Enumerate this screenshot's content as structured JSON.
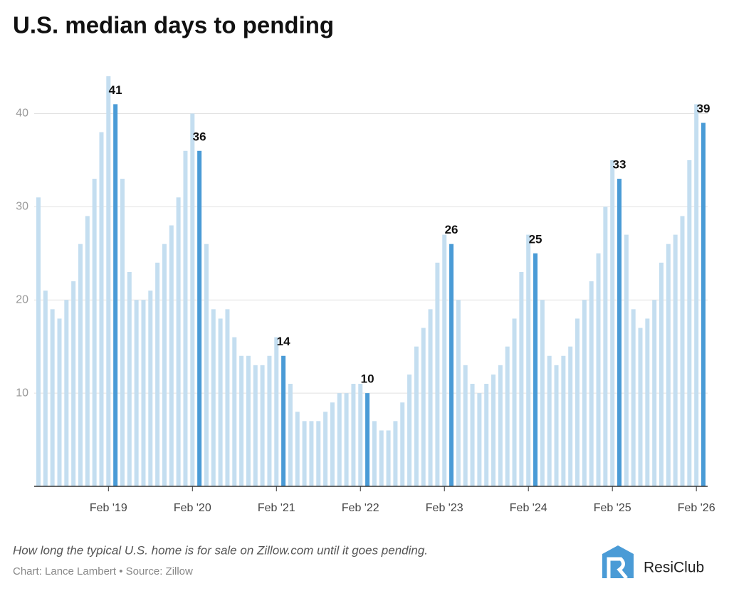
{
  "chart_data": {
    "type": "bar",
    "title": "U.S. median days to pending",
    "caption": "How long the typical U.S. home is for sale on Zillow.com until it goes pending.",
    "credit": "Chart: Lance Lambert • Source: Zillow",
    "brand": "ResiClub",
    "categories": [
      null,
      null,
      null,
      null,
      null,
      null,
      null,
      null,
      null,
      null,
      "Feb '19",
      null,
      null,
      null,
      null,
      null,
      null,
      null,
      null,
      null,
      null,
      null,
      "Feb '20",
      null,
      null,
      null,
      null,
      null,
      null,
      null,
      null,
      null,
      null,
      null,
      "Feb '21",
      null,
      null,
      null,
      null,
      null,
      null,
      null,
      null,
      null,
      null,
      null,
      "Feb '22",
      null,
      null,
      null,
      null,
      null,
      null,
      null,
      null,
      null,
      null,
      null,
      "Feb '23",
      null,
      null,
      null,
      null,
      null,
      null,
      null,
      null,
      null,
      null,
      null,
      "Feb '24",
      null,
      null,
      null,
      null,
      null,
      null,
      null,
      null,
      null,
      null,
      null,
      "Feb '25",
      null,
      null,
      null,
      null,
      null,
      null,
      null,
      null,
      null,
      null,
      null,
      "Feb '26",
      null
    ],
    "values": [
      31,
      21,
      19,
      18,
      20,
      22,
      26,
      29,
      33,
      38,
      44,
      41,
      33,
      23,
      20,
      20,
      21,
      24,
      26,
      28,
      31,
      36,
      40,
      36,
      26,
      19,
      18,
      19,
      16,
      14,
      14,
      13,
      13,
      14,
      16,
      14,
      11,
      8,
      7,
      7,
      7,
      8,
      9,
      10,
      10,
      11,
      11,
      10,
      7,
      6,
      6,
      7,
      9,
      12,
      15,
      17,
      19,
      24,
      27,
      26,
      20,
      13,
      11,
      10,
      11,
      12,
      13,
      15,
      18,
      23,
      27,
      25,
      20,
      14,
      13,
      14,
      15,
      18,
      20,
      22,
      25,
      30,
      35,
      33,
      27,
      19,
      17,
      18,
      20,
      24,
      26,
      27,
      29,
      35,
      41,
      39
    ],
    "value_labels": [
      null,
      null,
      null,
      null,
      null,
      null,
      null,
      null,
      null,
      null,
      null,
      "41",
      null,
      null,
      null,
      null,
      null,
      null,
      null,
      null,
      null,
      null,
      null,
      "36",
      null,
      null,
      null,
      null,
      null,
      null,
      null,
      null,
      null,
      null,
      null,
      "14",
      null,
      null,
      null,
      null,
      null,
      null,
      null,
      null,
      null,
      null,
      null,
      "10",
      null,
      null,
      null,
      null,
      null,
      null,
      null,
      null,
      null,
      null,
      null,
      "26",
      null,
      null,
      null,
      null,
      null,
      null,
      null,
      null,
      null,
      null,
      null,
      "25",
      null,
      null,
      null,
      null,
      null,
      null,
      null,
      null,
      null,
      null,
      null,
      "33",
      null,
      null,
      null,
      null,
      null,
      null,
      null,
      null,
      null,
      null,
      null,
      "39"
    ],
    "color": "#c4def0",
    "highlight_color": "#4a9bd6",
    "ylim": [
      0,
      45
    ],
    "yticks": [
      10,
      20,
      30,
      40
    ],
    "grid": true
  }
}
